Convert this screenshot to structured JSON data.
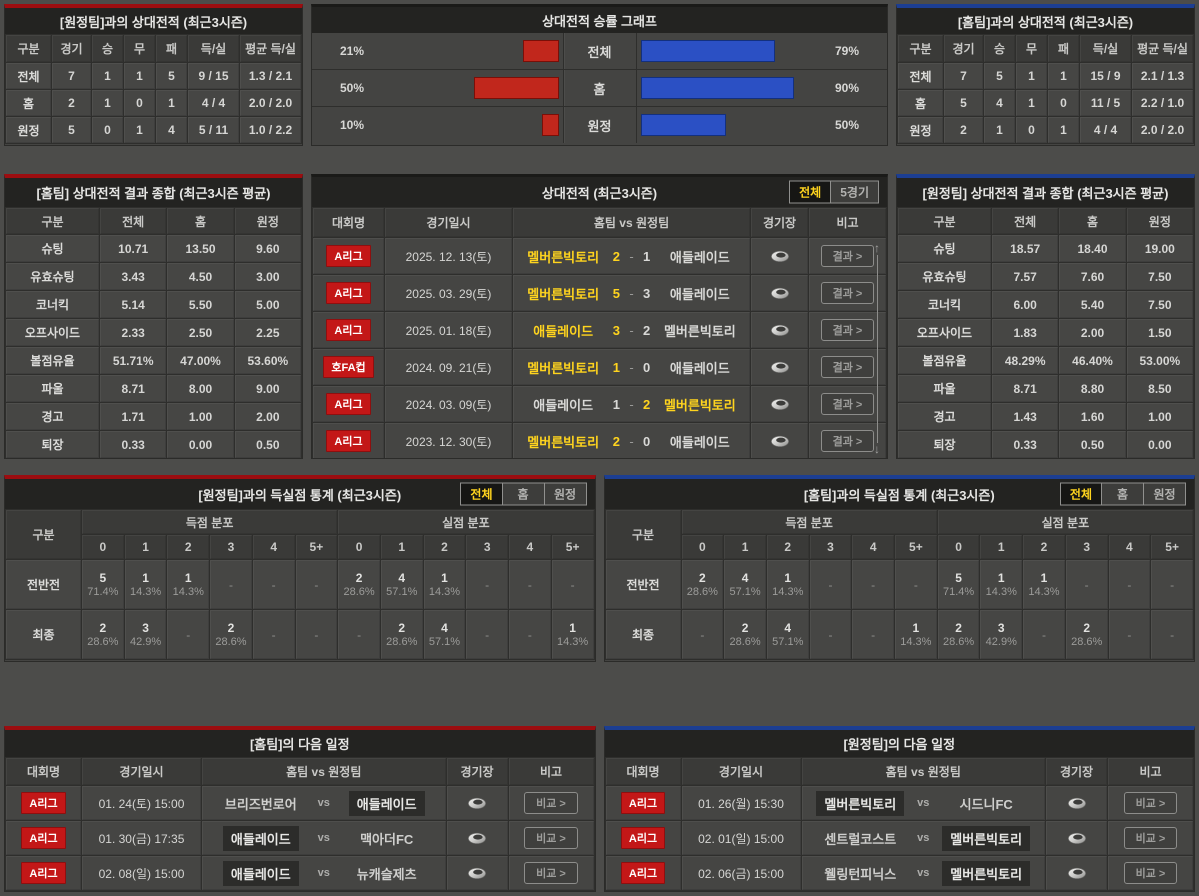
{
  "colors": {
    "accent_red": "#9c0d10",
    "accent_blue": "#1c3e92",
    "badge_red": "#c31717",
    "highlight_yellow": "#ffd41e",
    "bar_red": "#c1271c",
    "bar_blue": "#2b50c4"
  },
  "labels": {
    "vs": "vs",
    "dash": "-",
    "score_sep": "-"
  },
  "icons": {
    "scroll_up": "↑",
    "scroll_down": "↓",
    "stadium": "stadium-ring"
  },
  "h2h_away": {
    "title": "[원정팀]과의 상대전적 (최근3시즌)",
    "columns": [
      "구분",
      "경기",
      "승",
      "무",
      "패",
      "득/실",
      "평균 득/실"
    ],
    "rows": [
      {
        "label": "전체",
        "cells": [
          "7",
          "1",
          "1",
          "5",
          "9 / 15",
          "1.3 / 2.1"
        ]
      },
      {
        "label": "홈",
        "cells": [
          "2",
          "1",
          "0",
          "1",
          "4 / 4",
          "2.0 / 2.0"
        ]
      },
      {
        "label": "원정",
        "cells": [
          "5",
          "0",
          "1",
          "4",
          "5 / 11",
          "1.0 / 2.2"
        ]
      }
    ]
  },
  "h2h_home": {
    "title": "[홈팀]과의 상대전적 (최근3시즌)",
    "columns": [
      "구분",
      "경기",
      "승",
      "무",
      "패",
      "득/실",
      "평균 득/실"
    ],
    "rows": [
      {
        "label": "전체",
        "cells": [
          "7",
          "5",
          "1",
          "1",
          "15 / 9",
          "2.1 / 1.3"
        ]
      },
      {
        "label": "홈",
        "cells": [
          "5",
          "4",
          "1",
          "0",
          "11 / 5",
          "2.2 / 1.0"
        ]
      },
      {
        "label": "원정",
        "cells": [
          "2",
          "1",
          "0",
          "1",
          "4 / 4",
          "2.0 / 2.0"
        ]
      }
    ]
  },
  "chart_data": {
    "type": "bar",
    "title": "상대전적 승률 그래프",
    "orientation": "horizontal-bidirectional",
    "categories": [
      "전체",
      "홈",
      "원정"
    ],
    "series": [
      {
        "name": "red",
        "color": "#c1271c",
        "values": [
          21,
          50,
          10
        ]
      },
      {
        "name": "blue",
        "color": "#2b50c4",
        "values": [
          79,
          90,
          50
        ]
      }
    ],
    "unit": "%",
    "xlim": [
      0,
      100
    ],
    "legend": "none"
  },
  "summary_home": {
    "title": "[홈팀] 상대전적 결과 종합 (최근3시즌 평균)",
    "columns": [
      "구분",
      "전체",
      "홈",
      "원정"
    ],
    "rows": [
      {
        "label": "슈팅",
        "cells": [
          "10.71",
          "13.50",
          "9.60"
        ]
      },
      {
        "label": "유효슈팅",
        "cells": [
          "3.43",
          "4.50",
          "3.00"
        ]
      },
      {
        "label": "코너킥",
        "cells": [
          "5.14",
          "5.50",
          "5.00"
        ]
      },
      {
        "label": "오프사이드",
        "cells": [
          "2.33",
          "2.50",
          "2.25"
        ]
      },
      {
        "label": "볼점유율",
        "cells": [
          "51.71%",
          "47.00%",
          "53.60%"
        ]
      },
      {
        "label": "파울",
        "cells": [
          "8.71",
          "8.00",
          "9.00"
        ]
      },
      {
        "label": "경고",
        "cells": [
          "1.71",
          "1.00",
          "2.00"
        ]
      },
      {
        "label": "퇴장",
        "cells": [
          "0.33",
          "0.00",
          "0.50"
        ]
      }
    ]
  },
  "summary_away": {
    "title": "[원정팀] 상대전적 결과 종합 (최근3시즌 평균)",
    "columns": [
      "구분",
      "전체",
      "홈",
      "원정"
    ],
    "rows": [
      {
        "label": "슈팅",
        "cells": [
          "18.57",
          "18.40",
          "19.00"
        ]
      },
      {
        "label": "유효슈팅",
        "cells": [
          "7.57",
          "7.60",
          "7.50"
        ]
      },
      {
        "label": "코너킥",
        "cells": [
          "6.00",
          "5.40",
          "7.50"
        ]
      },
      {
        "label": "오프사이드",
        "cells": [
          "1.83",
          "2.00",
          "1.50"
        ]
      },
      {
        "label": "볼점유율",
        "cells": [
          "48.29%",
          "46.40%",
          "53.00%"
        ]
      },
      {
        "label": "파울",
        "cells": [
          "8.71",
          "8.80",
          "8.50"
        ]
      },
      {
        "label": "경고",
        "cells": [
          "1.43",
          "1.60",
          "1.00"
        ]
      },
      {
        "label": "퇴장",
        "cells": [
          "0.33",
          "0.50",
          "0.00"
        ]
      }
    ]
  },
  "matches": {
    "title": "상대전적 (최근3시즌)",
    "tabs": [
      {
        "key": "all",
        "label": "전체",
        "active": true
      },
      {
        "key": "last5",
        "label": "5경기",
        "active": false
      }
    ],
    "columns": [
      "대회명",
      "경기일시",
      "홈팀  vs  원정팀",
      "경기장",
      "비고"
    ],
    "result_button": "결과 >",
    "rows": [
      {
        "league": "A리그",
        "date": "2025. 12. 13(토)",
        "home": "멜버른빅토리",
        "hs": "2",
        "as": "1",
        "away": "애들레이드",
        "win": "home"
      },
      {
        "league": "A리그",
        "date": "2025. 03. 29(토)",
        "home": "멜버른빅토리",
        "hs": "5",
        "as": "3",
        "away": "애들레이드",
        "win": "home"
      },
      {
        "league": "A리그",
        "date": "2025. 01. 18(토)",
        "home": "애들레이드",
        "hs": "3",
        "as": "2",
        "away": "멜버른빅토리",
        "win": "home"
      },
      {
        "league": "호FA컵",
        "date": "2024. 09. 21(토)",
        "home": "멜버른빅토리",
        "hs": "1",
        "as": "0",
        "away": "애들레이드",
        "win": "home"
      },
      {
        "league": "A리그",
        "date": "2024. 03. 09(토)",
        "home": "애들레이드",
        "hs": "1",
        "as": "2",
        "away": "멜버른빅토리",
        "win": "away"
      },
      {
        "league": "A리그",
        "date": "2023. 12. 30(토)",
        "home": "멜버른빅토리",
        "hs": "2",
        "as": "0",
        "away": "애들레이드",
        "win": "home"
      }
    ]
  },
  "goals_away": {
    "title": "[원정팀]과의 득실점 통계 (최근3시즌)",
    "tabs": [
      {
        "key": "all",
        "label": "전체",
        "active": true
      },
      {
        "key": "home",
        "label": "홈",
        "active": false
      },
      {
        "key": "away",
        "label": "원정",
        "active": false
      }
    ],
    "col_label": "구분",
    "group_scored": "득점 분포",
    "group_conceded": "실점 분포",
    "bins": [
      "0",
      "1",
      "2",
      "3",
      "4",
      "5+"
    ],
    "rows": [
      {
        "label": "전반전",
        "scored": [
          [
            "5",
            "71.4%"
          ],
          [
            "1",
            "14.3%"
          ],
          [
            "1",
            "14.3%"
          ],
          null,
          null,
          null
        ],
        "conceded": [
          [
            "2",
            "28.6%"
          ],
          [
            "4",
            "57.1%"
          ],
          [
            "1",
            "14.3%"
          ],
          null,
          null,
          null
        ]
      },
      {
        "label": "최종",
        "scored": [
          [
            "2",
            "28.6%"
          ],
          [
            "3",
            "42.9%"
          ],
          null,
          [
            "2",
            "28.6%"
          ],
          null,
          null
        ],
        "conceded": [
          null,
          [
            "2",
            "28.6%"
          ],
          [
            "4",
            "57.1%"
          ],
          null,
          null,
          [
            "1",
            "14.3%"
          ]
        ]
      }
    ]
  },
  "goals_home": {
    "title": "[홈팀]과의 득실점 통계 (최근3시즌)",
    "tabs": [
      {
        "key": "all",
        "label": "전체",
        "active": true
      },
      {
        "key": "home",
        "label": "홈",
        "active": false
      },
      {
        "key": "away",
        "label": "원정",
        "active": false
      }
    ],
    "col_label": "구분",
    "group_scored": "득점 분포",
    "group_conceded": "실점 분포",
    "bins": [
      "0",
      "1",
      "2",
      "3",
      "4",
      "5+"
    ],
    "rows": [
      {
        "label": "전반전",
        "scored": [
          [
            "2",
            "28.6%"
          ],
          [
            "4",
            "57.1%"
          ],
          [
            "1",
            "14.3%"
          ],
          null,
          null,
          null
        ],
        "conceded": [
          [
            "5",
            "71.4%"
          ],
          [
            "1",
            "14.3%"
          ],
          [
            "1",
            "14.3%"
          ],
          null,
          null,
          null
        ]
      },
      {
        "label": "최종",
        "scored": [
          null,
          [
            "2",
            "28.6%"
          ],
          [
            "4",
            "57.1%"
          ],
          null,
          null,
          [
            "1",
            "14.3%"
          ]
        ],
        "conceded": [
          [
            "2",
            "28.6%"
          ],
          [
            "3",
            "42.9%"
          ],
          null,
          [
            "2",
            "28.6%"
          ],
          null,
          null
        ]
      }
    ]
  },
  "schedule_home": {
    "title": "[홈팀]의 다음 일정",
    "columns": [
      "대회명",
      "경기일시",
      "홈팀  vs  원정팀",
      "경기장",
      "비고"
    ],
    "compare_button": "비교 >",
    "rows": [
      {
        "league": "A리그",
        "date": "01. 24(토) 15:00",
        "home": "브리즈번로어",
        "away": "애들레이드",
        "hl": "away"
      },
      {
        "league": "A리그",
        "date": "01. 30(금) 17:35",
        "home": "애들레이드",
        "away": "맥아더FC",
        "hl": "home"
      },
      {
        "league": "A리그",
        "date": "02. 08(일) 15:00",
        "home": "애들레이드",
        "away": "뉴캐슬제츠",
        "hl": "home"
      }
    ]
  },
  "schedule_away": {
    "title": "[원정팀]의 다음 일정",
    "columns": [
      "대회명",
      "경기일시",
      "홈팀  vs  원정팀",
      "경기장",
      "비고"
    ],
    "compare_button": "비교 >",
    "rows": [
      {
        "league": "A리그",
        "date": "01. 26(월) 15:30",
        "home": "멜버른빅토리",
        "away": "시드니FC",
        "hl": "home"
      },
      {
        "league": "A리그",
        "date": "02. 01(일) 15:00",
        "home": "센트럴코스트",
        "away": "멜버른빅토리",
        "hl": "away"
      },
      {
        "league": "A리그",
        "date": "02. 06(금) 15:00",
        "home": "웰링턴피닉스",
        "away": "멜버른빅토리",
        "hl": "away"
      }
    ]
  }
}
